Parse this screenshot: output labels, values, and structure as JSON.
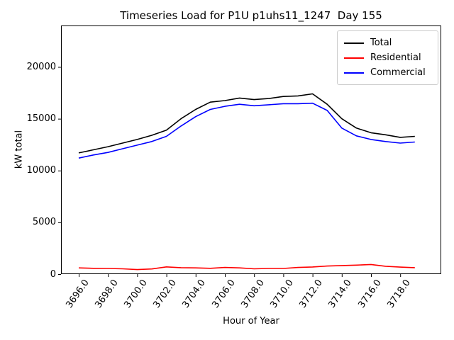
{
  "figure": {
    "title": "Timeseries Load for P1U p1uhs11_1247  Day 155",
    "xlabel": "Hour of Year",
    "ylabel": "kW total"
  },
  "chart_data": {
    "type": "line",
    "title": "Timeseries Load for P1U p1uhs11_1247  Day 155",
    "xlabel": "Hour of Year",
    "ylabel": "kW total",
    "grid": false,
    "legend_position": "upper right",
    "x": [
      3696,
      3697,
      3698,
      3699,
      3700,
      3701,
      3702,
      3703,
      3704,
      3705,
      3706,
      3707,
      3708,
      3709,
      3710,
      3711,
      3712,
      3713,
      3714,
      3715,
      3716,
      3717,
      3718,
      3719
    ],
    "series": [
      {
        "name": "Total",
        "color": "#000000",
        "values": [
          11700,
          12000,
          12300,
          12650,
          13000,
          13400,
          13900,
          15000,
          15900,
          16600,
          16750,
          17000,
          16850,
          16950,
          17150,
          17200,
          17400,
          16400,
          15000,
          14100,
          13650,
          13450,
          13200,
          13300
        ]
      },
      {
        "name": "Residential",
        "color": "#ff0000",
        "values": [
          600,
          560,
          550,
          510,
          440,
          500,
          700,
          620,
          600,
          560,
          640,
          600,
          510,
          550,
          550,
          640,
          690,
          780,
          830,
          870,
          930,
          760,
          680,
          620
        ]
      },
      {
        "name": "Commercial",
        "color": "#0000ff",
        "values": [
          11200,
          11500,
          11750,
          12100,
          12450,
          12800,
          13300,
          14300,
          15200,
          15900,
          16200,
          16400,
          16250,
          16350,
          16450,
          16450,
          16500,
          15800,
          14100,
          13350,
          13000,
          12800,
          12650,
          12750
        ]
      }
    ],
    "ylim": [
      0,
      24000
    ],
    "yticks": [
      0,
      5000,
      10000,
      15000,
      20000
    ],
    "xticks": [
      3696,
      3698,
      3700,
      3702,
      3704,
      3706,
      3708,
      3710,
      3712,
      3714,
      3716,
      3718
    ],
    "xtick_labels": [
      "3696.0",
      "3698.0",
      "3700.0",
      "3702.0",
      "3704.0",
      "3706.0",
      "3708.0",
      "3710.0",
      "3712.0",
      "3714.0",
      "3716.0",
      "3718.0"
    ],
    "xtick_rotation": -55
  }
}
